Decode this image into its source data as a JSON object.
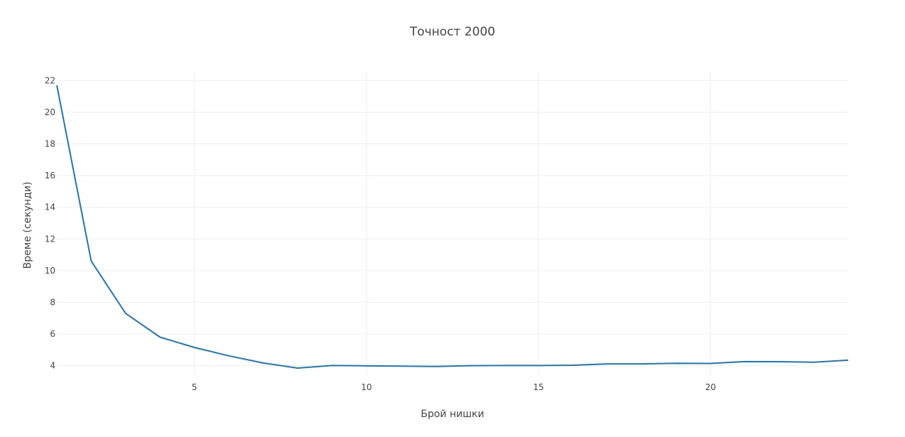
{
  "chart_data": {
    "type": "line",
    "title": "Точност 2000",
    "xlabel": "Брой нишки",
    "ylabel": "Време (секунди)",
    "xlim": [
      1,
      24
    ],
    "ylim": [
      3.4,
      22.6
    ],
    "x_ticks": [
      5,
      10,
      15,
      20
    ],
    "y_ticks": [
      4,
      6,
      8,
      10,
      12,
      14,
      16,
      18,
      20,
      22
    ],
    "grid": true,
    "color": "#1f77b4",
    "x": [
      1,
      2,
      3,
      4,
      5,
      6,
      7,
      8,
      9,
      10,
      11,
      12,
      13,
      14,
      15,
      16,
      17,
      18,
      19,
      20,
      21,
      22,
      23,
      24
    ],
    "series": [
      {
        "values": [
          21.7,
          10.6,
          7.3,
          5.8,
          5.15,
          4.62,
          4.17,
          3.85,
          4.01,
          3.99,
          3.97,
          3.95,
          4.0,
          4.01,
          4.01,
          4.03,
          4.11,
          4.11,
          4.15,
          4.14,
          4.26,
          4.25,
          4.22,
          4.35
        ]
      }
    ]
  }
}
